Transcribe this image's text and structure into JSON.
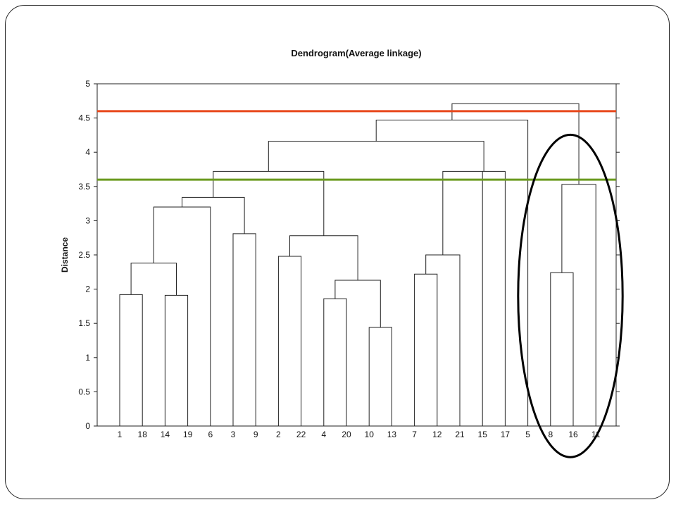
{
  "chart_data": {
    "type": "dendrogram",
    "title": "Dendrogram(Average linkage)",
    "ylabel": "Distance",
    "xlabel": "",
    "ylim": [
      0,
      5
    ],
    "yticks": [
      0,
      0.5,
      1,
      1.5,
      2,
      2.5,
      3,
      3.5,
      4,
      4.5,
      5
    ],
    "ytick_labels": [
      "0",
      "0.5",
      "1",
      "1.5",
      "2",
      "2.5",
      "3",
      "3.5",
      "4",
      "4.5",
      "5"
    ],
    "leaves": [
      "1",
      "18",
      "14",
      "19",
      "6",
      "3",
      "9",
      "2",
      "22",
      "4",
      "20",
      "10",
      "13",
      "7",
      "12",
      "21",
      "15",
      "17",
      "5",
      "8",
      "16",
      "11"
    ],
    "merges": [
      {
        "left": "1",
        "right": "18",
        "height": 1.92
      },
      {
        "left": "14",
        "right": "19",
        "height": 1.91
      },
      {
        "left": "1,18",
        "right": "14,19",
        "height": 2.38
      },
      {
        "left": "1,18,14,19",
        "right": "6",
        "height": 3.2
      },
      {
        "left": "3",
        "right": "9",
        "height": 2.81
      },
      {
        "left": "1,18,14,19,6",
        "right": "3,9",
        "height": 3.34
      },
      {
        "left": "2",
        "right": "22",
        "height": 2.48
      },
      {
        "left": "4",
        "right": "20",
        "height": 1.86
      },
      {
        "left": "10",
        "right": "13",
        "height": 1.44
      },
      {
        "left": "4,20",
        "right": "10,13",
        "height": 2.13
      },
      {
        "left": "2,22",
        "right": "4,20,10,13",
        "height": 2.78
      },
      {
        "left": "1..9",
        "right": "2..13",
        "height": 3.72
      },
      {
        "left": "7",
        "right": "12",
        "height": 2.22
      },
      {
        "left": "7,12",
        "right": "21",
        "height": 2.5
      },
      {
        "left": "7,12,21",
        "right": "15",
        "height": 3.72
      },
      {
        "left": "1..13",
        "right": "7..17",
        "height": 4.16
      },
      {
        "left": "1..17",
        "right": "5",
        "height": 4.47
      },
      {
        "left": "8",
        "right": "16",
        "height": 2.24
      },
      {
        "left": "8,16",
        "right": "11",
        "height": 3.53
      },
      {
        "left": "1..5",
        "right": "8,16,11",
        "height": 4.71
      }
    ],
    "reference_lines": [
      {
        "value": 4.6,
        "color": "#e8471b"
      },
      {
        "value": 3.6,
        "color": "#6a9a1f"
      }
    ],
    "highlight": {
      "shape": "ellipse",
      "leaves": [
        "8",
        "16",
        "11"
      ],
      "color": "#000000"
    },
    "grid": false,
    "legend": "none"
  }
}
